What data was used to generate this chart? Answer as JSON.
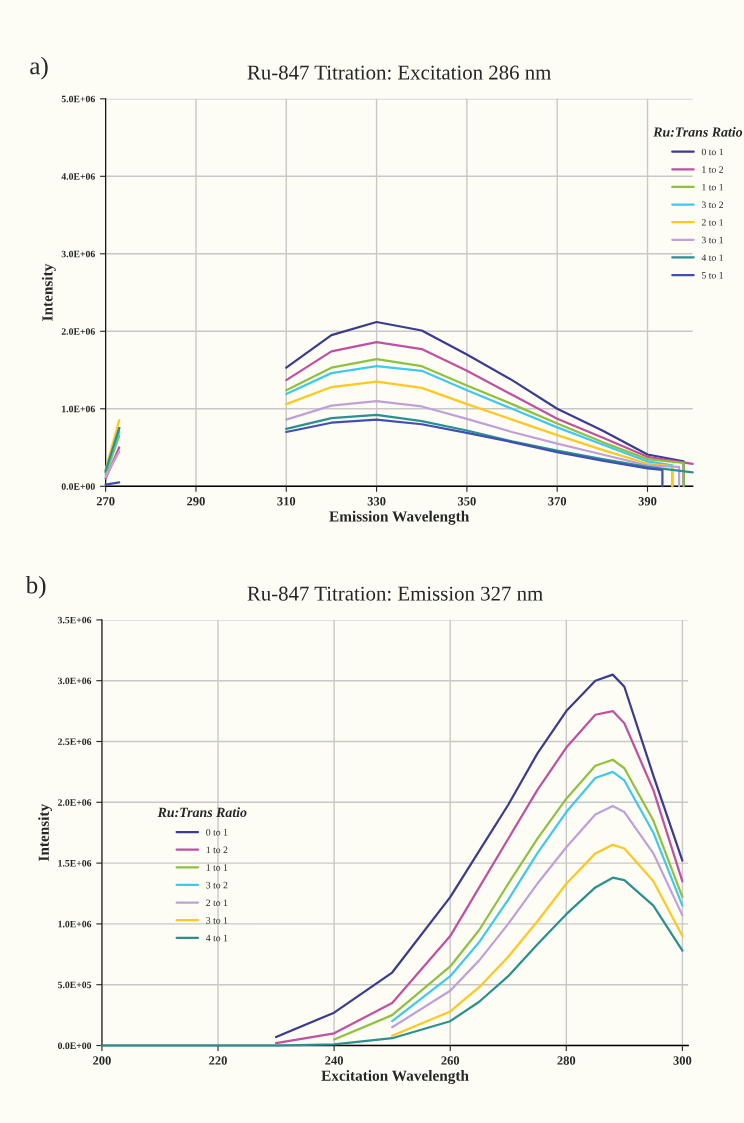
{
  "chart_data": [
    {
      "type": "line",
      "title": "Ru-847 Titration: Excitation 286 nm",
      "xlabel": "Emission Wavelength",
      "ylabel": "Intensity",
      "legend_title": "Ru:Trans Ratio",
      "legend": "right",
      "grid": true,
      "annotations": [
        "a)"
      ],
      "xlim": [
        270,
        400
      ],
      "xticks": [
        270,
        290,
        310,
        330,
        350,
        370,
        390
      ],
      "ylim": [
        0,
        5000000
      ],
      "yticks": [
        {
          "value": 0,
          "label": "0.0E+00"
        },
        {
          "value": 1000000,
          "label": "1.0E+06"
        },
        {
          "value": 2000000,
          "label": "2.0E+06"
        },
        {
          "value": 3000000,
          "label": "3.0E+06"
        },
        {
          "value": 4000000,
          "label": "4.0E+06"
        },
        {
          "value": 5000000,
          "label": "5.0E+06"
        }
      ],
      "series": [
        {
          "name": "0 to 1",
          "color": "#3b3b8f",
          "x": [
            270,
            273,
            290,
            310,
            320,
            330,
            340,
            350,
            360,
            370,
            380,
            390,
            398,
            398
          ],
          "values": [
            180000,
            750000,
            null,
            1530000,
            1950000,
            2120000,
            2010000,
            1700000,
            1370000,
            1000000,
            720000,
            410000,
            320000,
            0
          ]
        },
        {
          "name": "1 to 2",
          "color": "#c050a0",
          "x": [
            270,
            273,
            290,
            310,
            320,
            330,
            340,
            350,
            360,
            370,
            380,
            390,
            400
          ],
          "values": [
            100000,
            500000,
            null,
            1370000,
            1740000,
            1860000,
            1770000,
            1490000,
            1180000,
            870000,
            630000,
            380000,
            290000
          ]
        },
        {
          "name": "1 to 1",
          "color": "#90c040",
          "x": [
            270,
            273,
            290,
            310,
            320,
            330,
            340,
            350,
            360,
            370,
            380,
            390,
            398,
            398
          ],
          "values": [
            150000,
            650000,
            null,
            1240000,
            1530000,
            1640000,
            1550000,
            1300000,
            1060000,
            810000,
            570000,
            350000,
            300000,
            0
          ]
        },
        {
          "name": "3 to 2",
          "color": "#40c8f0",
          "x": [
            270,
            273,
            290,
            310,
            320,
            330,
            340,
            350,
            360,
            370,
            380,
            390,
            395.5,
            395.5
          ],
          "values": [
            200000,
            700000,
            null,
            1190000,
            1460000,
            1550000,
            1490000,
            1240000,
            1000000,
            760000,
            540000,
            320000,
            270000,
            0
          ]
        },
        {
          "name": "2 to 1",
          "color": "#ffc820",
          "x": [
            270,
            273,
            290,
            310,
            320,
            330,
            340,
            350,
            360,
            370,
            380,
            390,
            395.5,
            395.5
          ],
          "values": [
            220000,
            850000,
            null,
            1060000,
            1280000,
            1350000,
            1270000,
            1060000,
            860000,
            660000,
            470000,
            290000,
            260000,
            0
          ]
        },
        {
          "name": "3 to 1",
          "color": "#c0a0d8",
          "x": [
            270,
            273,
            290,
            310,
            320,
            330,
            340,
            350,
            360,
            370,
            380,
            390,
            397,
            397
          ],
          "values": [
            120000,
            450000,
            null,
            860000,
            1040000,
            1100000,
            1030000,
            870000,
            700000,
            550000,
            410000,
            270000,
            250000,
            0
          ]
        },
        {
          "name": "4 to 1",
          "color": "#2a9090",
          "x": [
            270,
            273,
            290,
            310,
            320,
            330,
            340,
            350,
            360,
            370,
            380,
            390,
            400
          ],
          "values": [
            200000,
            750000,
            null,
            740000,
            880000,
            920000,
            840000,
            720000,
            580000,
            460000,
            350000,
            250000,
            180000
          ]
        },
        {
          "name": "5 to 1",
          "color": "#4050b0",
          "x": [
            270,
            273,
            290,
            310,
            320,
            330,
            340,
            350,
            360,
            370,
            380,
            390,
            393.3,
            393.3
          ],
          "values": [
            20000,
            50000,
            null,
            700000,
            820000,
            860000,
            800000,
            690000,
            570000,
            440000,
            330000,
            230000,
            210000,
            0
          ]
        }
      ]
    },
    {
      "type": "line",
      "title": "Ru-847 Titration: Emission 327 nm",
      "xlabel": "Excitation Wavelength",
      "ylabel": "Intensity",
      "legend_title": "Ru:Trans Ratio",
      "legend": "center left",
      "grid": true,
      "annotations": [
        "b)"
      ],
      "xlim": [
        200,
        301
      ],
      "xticks": [
        200,
        220,
        240,
        260,
        280,
        300
      ],
      "ylim": [
        0,
        3500000
      ],
      "yticks": [
        {
          "value": 0,
          "label": "0.0E+00"
        },
        {
          "value": 500000,
          "label": "5.0E+05"
        },
        {
          "value": 1000000,
          "label": "1.0E+06"
        },
        {
          "value": 1500000,
          "label": "1.5E+06"
        },
        {
          "value": 2000000,
          "label": "2.0E+06"
        },
        {
          "value": 2500000,
          "label": "2.5E+06"
        },
        {
          "value": 3000000,
          "label": "3.0E+06"
        },
        {
          "value": 3500000,
          "label": "3.5E+06"
        }
      ],
      "series": [
        {
          "name": "0 to 1",
          "color": "#3b3b8f",
          "x": [
            230,
            240,
            250,
            260,
            265,
            270,
            275,
            280,
            285,
            288,
            290,
            295,
            300
          ],
          "values": [
            70000,
            270000,
            600000,
            1220000,
            1600000,
            1980000,
            2400000,
            2750000,
            3000000,
            3050000,
            2950000,
            2220000,
            1520000
          ]
        },
        {
          "name": "1 to 2",
          "color": "#c050a0",
          "x": [
            230,
            240,
            250,
            260,
            265,
            270,
            275,
            280,
            285,
            288,
            290,
            295,
            300
          ],
          "values": [
            20000,
            100000,
            350000,
            900000,
            1300000,
            1700000,
            2100000,
            2450000,
            2720000,
            2750000,
            2650000,
            2100000,
            1350000
          ]
        },
        {
          "name": "1 to 1",
          "color": "#90c040",
          "x": [
            240,
            250,
            260,
            265,
            270,
            275,
            280,
            285,
            288,
            290,
            295,
            300
          ],
          "values": [
            50000,
            250000,
            650000,
            950000,
            1330000,
            1700000,
            2030000,
            2300000,
            2350000,
            2280000,
            1850000,
            1220000
          ]
        },
        {
          "name": "3 to 2",
          "color": "#40c8f0",
          "x": [
            250,
            260,
            265,
            270,
            275,
            280,
            285,
            288,
            290,
            295,
            300
          ],
          "values": [
            200000,
            570000,
            850000,
            1200000,
            1580000,
            1920000,
            2200000,
            2250000,
            2180000,
            1750000,
            1150000
          ]
        },
        {
          "name": "2 to 1",
          "color": "#c0a0d8",
          "x": [
            250,
            260,
            265,
            270,
            275,
            280,
            285,
            288,
            290,
            295,
            300
          ],
          "values": [
            150000,
            450000,
            700000,
            1000000,
            1330000,
            1630000,
            1900000,
            1970000,
            1920000,
            1580000,
            1070000
          ]
        },
        {
          "name": "3 to 1",
          "color": "#ffc820",
          "x": [
            250,
            260,
            265,
            270,
            275,
            280,
            285,
            288,
            290,
            295,
            300
          ],
          "values": [
            80000,
            280000,
            480000,
            730000,
            1020000,
            1330000,
            1580000,
            1650000,
            1620000,
            1350000,
            900000
          ]
        },
        {
          "name": "4 to 1",
          "color": "#2a9090",
          "x": [
            200,
            220,
            225,
            230,
            240,
            250,
            260,
            265,
            270,
            275,
            280,
            285,
            288,
            290,
            295,
            300
          ],
          "values": [
            0,
            0,
            0,
            0,
            10000,
            60000,
            200000,
            360000,
            570000,
            830000,
            1080000,
            1300000,
            1380000,
            1360000,
            1150000,
            780000
          ]
        }
      ]
    }
  ]
}
